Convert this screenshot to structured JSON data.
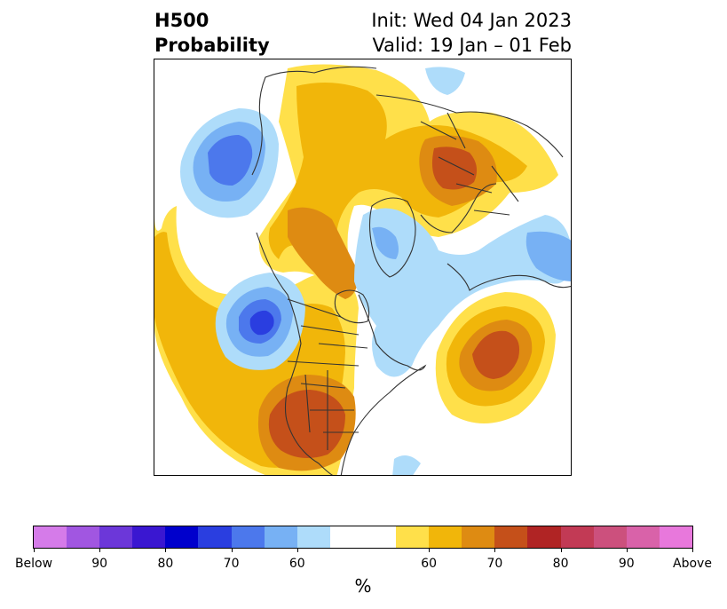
{
  "header": {
    "title_line1": "H500",
    "title_line2": "Probability",
    "init": "Init: Wed 04 Jan 2023",
    "valid": "Valid: 19 Jan – 01 Feb"
  },
  "colorbar": {
    "units": "%",
    "colors": [
      "#d57be9",
      "#a156e1",
      "#6c37d9",
      "#3a17d1",
      "#0000cc",
      "#2a3ee0",
      "#4c78ec",
      "#77b1f4",
      "#aedcfa",
      "#ffffff",
      "#ffe04a",
      "#f1b60a",
      "#de8b12",
      "#c5501a",
      "#b02424",
      "#c23a55",
      "#cc507d",
      "#d962a9",
      "#e878dc"
    ],
    "ticks": [
      "Below",
      "90",
      "80",
      "70",
      "60",
      "60",
      "70",
      "80",
      "90",
      "Above"
    ]
  },
  "legend_colors": {
    "below_60": "#aedcfa",
    "below_65": "#77b1f4",
    "below_70": "#4c78ec",
    "below_75": "#2a3ee0",
    "above_60": "#ffe04a",
    "above_65": "#f1b60a",
    "above_70": "#de8b12",
    "above_75": "#c5501a"
  }
}
